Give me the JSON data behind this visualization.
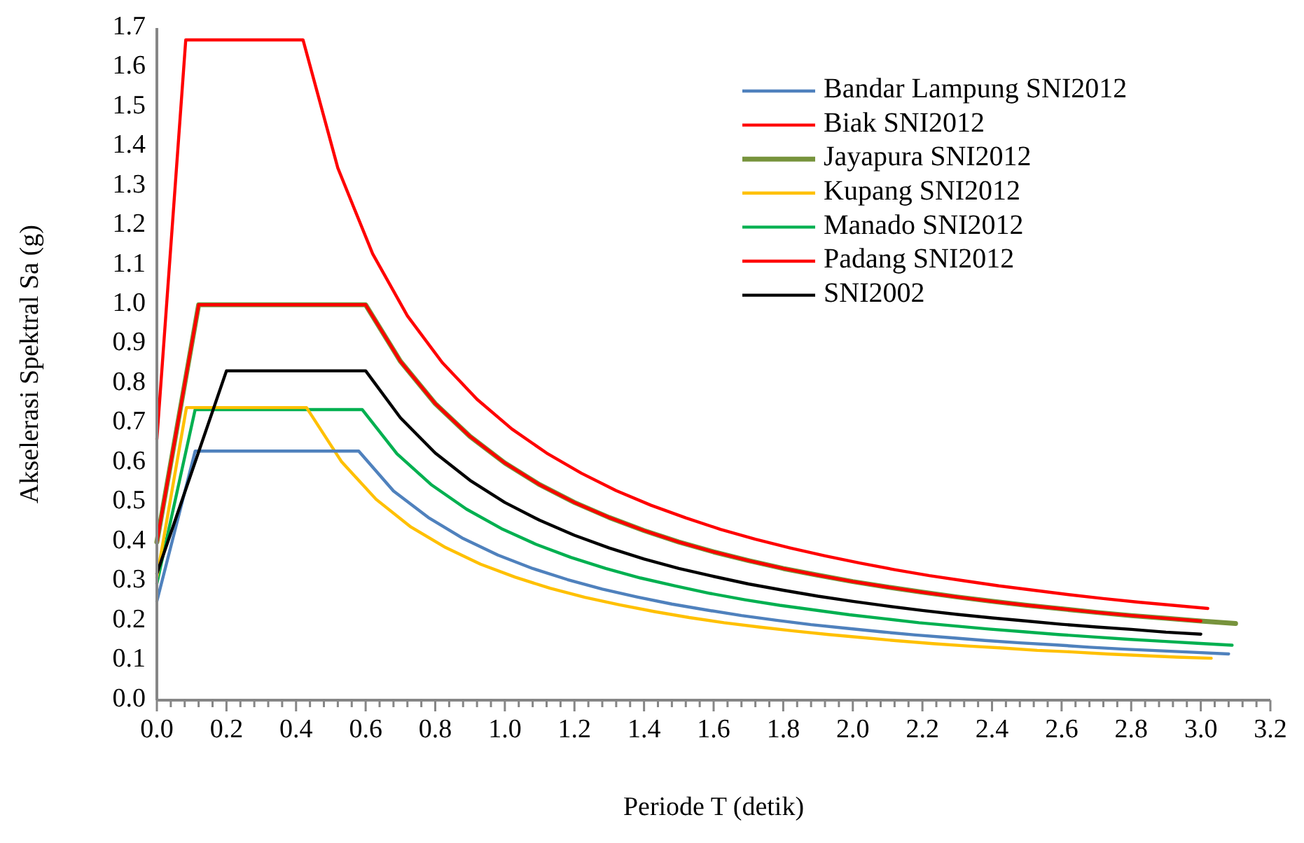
{
  "chart_data": {
    "type": "line",
    "xlabel": "Periode T (detik)",
    "ylabel": "Akselerasi Spektral Sa (g)",
    "xlim": [
      0,
      3.2
    ],
    "ylim": [
      0,
      1.7
    ],
    "xticks": [
      {
        "value": 0,
        "label": "0.0"
      },
      {
        "value": 0.04,
        "label": null
      },
      {
        "value": 0.08,
        "label": null
      },
      {
        "value": 0.12,
        "label": null
      },
      {
        "value": 0.16,
        "label": null
      },
      {
        "value": 0.2,
        "label": "0.2"
      },
      {
        "value": 0.24,
        "label": null
      },
      {
        "value": 0.28,
        "label": null
      },
      {
        "value": 0.32,
        "label": null
      },
      {
        "value": 0.36,
        "label": null
      },
      {
        "value": 0.4,
        "label": "0.4"
      },
      {
        "value": 0.44,
        "label": null
      },
      {
        "value": 0.48,
        "label": null
      },
      {
        "value": 0.52,
        "label": null
      },
      {
        "value": 0.56,
        "label": null
      },
      {
        "value": 0.6,
        "label": "0.6"
      },
      {
        "value": 0.64,
        "label": null
      },
      {
        "value": 0.68,
        "label": null
      },
      {
        "value": 0.72,
        "label": null
      },
      {
        "value": 0.76,
        "label": null
      },
      {
        "value": 0.8,
        "label": "0.8"
      },
      {
        "value": 0.84,
        "label": null
      },
      {
        "value": 0.88,
        "label": null
      },
      {
        "value": 0.92,
        "label": null
      },
      {
        "value": 0.96,
        "label": null
      },
      {
        "value": 1.0,
        "label": "1.0"
      },
      {
        "value": 1.04,
        "label": null
      },
      {
        "value": 1.08,
        "label": null
      },
      {
        "value": 1.12,
        "label": null
      },
      {
        "value": 1.16,
        "label": null
      },
      {
        "value": 1.2,
        "label": "1.2"
      },
      {
        "value": 1.24,
        "label": null
      },
      {
        "value": 1.28,
        "label": null
      },
      {
        "value": 1.32,
        "label": null
      },
      {
        "value": 1.36,
        "label": null
      },
      {
        "value": 1.4,
        "label": "1.4"
      },
      {
        "value": 1.44,
        "label": null
      },
      {
        "value": 1.48,
        "label": null
      },
      {
        "value": 1.52,
        "label": null
      },
      {
        "value": 1.56,
        "label": null
      },
      {
        "value": 1.6,
        "label": "1.6"
      },
      {
        "value": 1.64,
        "label": null
      },
      {
        "value": 1.68,
        "label": null
      },
      {
        "value": 1.72,
        "label": null
      },
      {
        "value": 1.76,
        "label": null
      },
      {
        "value": 1.8,
        "label": "1.8"
      },
      {
        "value": 1.84,
        "label": null
      },
      {
        "value": 1.88,
        "label": null
      },
      {
        "value": 1.92,
        "label": null
      },
      {
        "value": 1.96,
        "label": null
      },
      {
        "value": 2.0,
        "label": "2.0"
      },
      {
        "value": 2.04,
        "label": null
      },
      {
        "value": 2.08,
        "label": null
      },
      {
        "value": 2.12,
        "label": null
      },
      {
        "value": 2.16,
        "label": null
      },
      {
        "value": 2.2,
        "label": "2.2"
      },
      {
        "value": 2.24,
        "label": null
      },
      {
        "value": 2.28,
        "label": null
      },
      {
        "value": 2.32,
        "label": null
      },
      {
        "value": 2.36,
        "label": null
      },
      {
        "value": 2.4,
        "label": "2.4"
      },
      {
        "value": 2.44,
        "label": null
      },
      {
        "value": 2.48,
        "label": null
      },
      {
        "value": 2.52,
        "label": null
      },
      {
        "value": 2.56,
        "label": null
      },
      {
        "value": 2.6,
        "label": "2.6"
      },
      {
        "value": 2.64,
        "label": null
      },
      {
        "value": 2.68,
        "label": null
      },
      {
        "value": 2.72,
        "label": null
      },
      {
        "value": 2.76,
        "label": null
      },
      {
        "value": 2.8,
        "label": "2.8"
      },
      {
        "value": 2.84,
        "label": null
      },
      {
        "value": 2.88,
        "label": null
      },
      {
        "value": 2.92,
        "label": null
      },
      {
        "value": 2.96,
        "label": null
      },
      {
        "value": 3.0,
        "label": "3.0"
      },
      {
        "value": 3.04,
        "label": null
      },
      {
        "value": 3.08,
        "label": null
      },
      {
        "value": 3.12,
        "label": null
      },
      {
        "value": 3.16,
        "label": null
      },
      {
        "value": 3.2,
        "label": "3.2"
      }
    ],
    "yticks": [
      {
        "value": 0,
        "label": "0.0"
      },
      0.1,
      0.2,
      0.3,
      0.4,
      0.5,
      0.6,
      0.7,
      0.8,
      0.9,
      {
        "value": 1.0,
        "label": "1.0"
      },
      1.1,
      1.2,
      1.3,
      1.4,
      1.5,
      1.6,
      1.7
    ],
    "grid": false,
    "legend": "top right",
    "marker": "none",
    "line_style": "solid",
    "series": [
      {
        "name": "Bandar Lampung SNI2012",
        "color": "#4f81bd",
        "x": [
          0,
          0.11,
          0.58,
          0.68,
          0.78,
          0.88,
          0.98,
          1.08,
          1.18,
          1.28,
          1.38,
          1.48,
          1.58,
          1.68,
          1.78,
          1.88,
          1.98,
          2.08,
          2.18,
          2.28,
          2.38,
          2.48,
          2.58,
          2.68,
          2.78,
          2.88,
          2.98,
          3.08
        ],
        "values": [
          0.25,
          0.63,
          0.63,
          0.529,
          0.462,
          0.409,
          0.367,
          0.333,
          0.305,
          0.281,
          0.261,
          0.243,
          0.228,
          0.214,
          0.202,
          0.191,
          0.182,
          0.173,
          0.165,
          0.158,
          0.151,
          0.145,
          0.14,
          0.134,
          0.129,
          0.125,
          0.121,
          0.117
        ]
      },
      {
        "name": "Biak SNI2012",
        "color": "#ff0000",
        "x": [
          0,
          0.12,
          0.6,
          0.7,
          0.8,
          0.9,
          1.0,
          1.1,
          1.2,
          1.3,
          1.4,
          1.5,
          1.6,
          1.7,
          1.8,
          1.9,
          2.0,
          2.1,
          2.2,
          2.3,
          2.4,
          2.5,
          2.6,
          2.7,
          2.8,
          2.9,
          3.0
        ],
        "values": [
          0.4,
          1.0,
          1.0,
          0.857,
          0.75,
          0.667,
          0.6,
          0.545,
          0.5,
          0.462,
          0.429,
          0.4,
          0.375,
          0.353,
          0.333,
          0.316,
          0.3,
          0.286,
          0.273,
          0.261,
          0.25,
          0.24,
          0.231,
          0.222,
          0.214,
          0.207,
          0.2
        ]
      },
      {
        "name": "Jayapura SNI2012",
        "color": "#77933c",
        "x": [
          0,
          0.12,
          0.6,
          0.7,
          0.8,
          0.9,
          1.0,
          1.1,
          1.2,
          1.3,
          1.4,
          1.5,
          1.6,
          1.7,
          1.8,
          1.9,
          2.0,
          2.1,
          2.2,
          2.3,
          2.4,
          2.5,
          2.6,
          2.7,
          2.8,
          2.9,
          3.0,
          3.1
        ],
        "values": [
          0.4,
          1.0,
          1.0,
          0.857,
          0.75,
          0.667,
          0.6,
          0.545,
          0.5,
          0.462,
          0.429,
          0.4,
          0.375,
          0.353,
          0.333,
          0.316,
          0.3,
          0.286,
          0.273,
          0.261,
          0.25,
          0.24,
          0.231,
          0.222,
          0.214,
          0.207,
          0.2,
          0.194
        ]
      },
      {
        "name": "Kupang SNI2012",
        "color": "#ffc000",
        "x": [
          0,
          0.085,
          0.43,
          0.53,
          0.63,
          0.73,
          0.83,
          0.93,
          1.03,
          1.13,
          1.23,
          1.33,
          1.43,
          1.53,
          1.63,
          1.73,
          1.83,
          1.93,
          2.03,
          2.13,
          2.23,
          2.33,
          2.43,
          2.53,
          2.63,
          2.73,
          2.83,
          2.93,
          3.03
        ],
        "values": [
          0.31,
          0.74,
          0.74,
          0.604,
          0.508,
          0.438,
          0.386,
          0.344,
          0.311,
          0.283,
          0.26,
          0.241,
          0.224,
          0.209,
          0.196,
          0.185,
          0.175,
          0.166,
          0.158,
          0.15,
          0.143,
          0.137,
          0.132,
          0.126,
          0.122,
          0.117,
          0.113,
          0.109,
          0.106
        ]
      },
      {
        "name": "Manado SNI2012",
        "color": "#00b050",
        "x": [
          0,
          0.11,
          0.59,
          0.69,
          0.79,
          0.89,
          0.99,
          1.09,
          1.19,
          1.29,
          1.39,
          1.49,
          1.59,
          1.69,
          1.79,
          1.89,
          1.99,
          2.09,
          2.19,
          2.29,
          2.39,
          2.49,
          2.59,
          2.69,
          2.79,
          2.89,
          2.99,
          3.09
        ],
        "values": [
          0.295,
          0.735,
          0.735,
          0.623,
          0.544,
          0.483,
          0.434,
          0.394,
          0.361,
          0.333,
          0.309,
          0.289,
          0.27,
          0.254,
          0.24,
          0.228,
          0.216,
          0.206,
          0.196,
          0.188,
          0.18,
          0.173,
          0.166,
          0.16,
          0.154,
          0.149,
          0.144,
          0.139
        ]
      },
      {
        "name": "Padang SNI2012",
        "color": "#ff0000",
        "x": [
          0,
          0.083,
          0.42,
          0.52,
          0.62,
          0.72,
          0.82,
          0.92,
          1.02,
          1.12,
          1.22,
          1.32,
          1.42,
          1.52,
          1.62,
          1.72,
          1.82,
          1.92,
          2.02,
          2.12,
          2.22,
          2.32,
          2.42,
          2.52,
          2.62,
          2.72,
          2.82,
          2.92,
          3.02
        ],
        "values": [
          0.66,
          1.67,
          1.67,
          1.346,
          1.129,
          0.972,
          0.854,
          0.761,
          0.686,
          0.625,
          0.574,
          0.53,
          0.493,
          0.461,
          0.432,
          0.407,
          0.385,
          0.365,
          0.347,
          0.33,
          0.315,
          0.302,
          0.289,
          0.278,
          0.267,
          0.257,
          0.248,
          0.24,
          0.232
        ]
      },
      {
        "name": "SNI2002",
        "color": "#000000",
        "x": [
          0,
          0.2,
          0.6,
          0.7,
          0.8,
          0.9,
          1.0,
          1.1,
          1.2,
          1.3,
          1.4,
          1.5,
          1.6,
          1.7,
          1.8,
          1.9,
          2.0,
          2.1,
          2.2,
          2.3,
          2.4,
          2.5,
          2.6,
          2.7,
          2.8,
          2.9,
          3.0
        ],
        "values": [
          0.32,
          0.833,
          0.833,
          0.714,
          0.625,
          0.556,
          0.5,
          0.455,
          0.417,
          0.385,
          0.357,
          0.333,
          0.313,
          0.294,
          0.278,
          0.263,
          0.25,
          0.238,
          0.227,
          0.217,
          0.208,
          0.2,
          0.192,
          0.185,
          0.179,
          0.172,
          0.167
        ]
      }
    ]
  }
}
